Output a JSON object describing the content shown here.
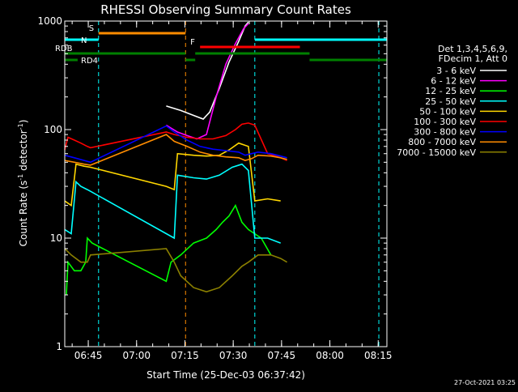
{
  "chart_data": {
    "type": "line",
    "title": "RHESSI Observing Summary Count Rates",
    "xlabel": "Start Time (25-Dec-03 06:37:42)",
    "ylabel": "Count Rate (s",
    "ylabel_sup1": "-1",
    "ylabel_mid": " detector",
    "ylabel_sup2": "-1",
    "ylabel_end": ")",
    "y_scale": "log",
    "ylim": [
      1,
      1000
    ],
    "xlim_minutes": [
      0,
      100
    ],
    "x_ticks": [
      {
        "label": "06:45",
        "min": 7.3
      },
      {
        "label": "07:00",
        "min": 22.3
      },
      {
        "label": "07:15",
        "min": 37.3
      },
      {
        "label": "07:30",
        "min": 52.3
      },
      {
        "label": "07:45",
        "min": 67.3
      },
      {
        "label": "08:00",
        "min": 82.3
      },
      {
        "label": "08:15",
        "min": 97.3
      }
    ],
    "y_ticks": [
      {
        "label": "1",
        "v": 1
      },
      {
        "label": "10",
        "v": 10
      },
      {
        "label": "100",
        "v": 100
      },
      {
        "label": "1000",
        "v": 1000
      }
    ],
    "legend_header": [
      "Det 1,3,4,5,6,9,",
      "FDecim 1, Att 0"
    ],
    "legend_placement": "right",
    "series": [
      {
        "name": "3 - 6 keV",
        "color": "#000000",
        "points": [
          [
            31.5,
            165
          ],
          [
            36,
            150
          ],
          [
            40,
            135
          ],
          [
            43,
            125
          ],
          [
            45,
            145
          ],
          [
            48,
            240
          ],
          [
            51,
            420
          ],
          [
            54,
            650
          ],
          [
            56,
            900
          ],
          [
            57,
            980
          ]
        ]
      },
      {
        "name": "6 - 12 keV",
        "color": "#ff00ff",
        "points": [
          [
            31.5,
            110
          ],
          [
            35,
            95
          ],
          [
            38,
            88
          ],
          [
            41,
            82
          ],
          [
            44,
            90
          ],
          [
            47,
            200
          ],
          [
            50,
            400
          ],
          [
            53,
            620
          ],
          [
            55.5,
            850
          ],
          [
            57,
            950
          ]
        ]
      },
      {
        "name": "12 - 25 keV",
        "color": "#00ff00",
        "points": [
          [
            0.5,
            3
          ],
          [
            1,
            6
          ],
          [
            3,
            5
          ],
          [
            5,
            5
          ],
          [
            6.5,
            6
          ],
          [
            7,
            10
          ],
          [
            8.5,
            9
          ],
          [
            31.5,
            4
          ],
          [
            33,
            6
          ],
          [
            36,
            7
          ],
          [
            40,
            9
          ],
          [
            44,
            10
          ],
          [
            47,
            12
          ],
          [
            49,
            14
          ],
          [
            51,
            16
          ],
          [
            53,
            20
          ],
          [
            55,
            14
          ],
          [
            57,
            12
          ],
          [
            61,
            10
          ],
          [
            64,
            7
          ]
        ]
      },
      {
        "name": "25 - 50 keV",
        "color": "#00ffff",
        "points": [
          [
            0,
            12
          ],
          [
            2,
            11
          ],
          [
            3.5,
            33
          ],
          [
            5,
            30
          ],
          [
            7,
            28
          ],
          [
            8,
            27
          ],
          [
            31.5,
            11
          ],
          [
            34,
            10
          ],
          [
            35,
            38
          ],
          [
            40,
            36
          ],
          [
            44,
            35
          ],
          [
            48,
            38
          ],
          [
            52,
            45
          ],
          [
            55,
            48
          ],
          [
            57,
            42
          ],
          [
            59,
            10
          ],
          [
            63,
            10
          ],
          [
            67,
            9
          ]
        ]
      },
      {
        "name": "50 - 100 keV",
        "color": "#ffd700",
        "points": [
          [
            0,
            22
          ],
          [
            2,
            20
          ],
          [
            3.5,
            48
          ],
          [
            6,
            46
          ],
          [
            8,
            45
          ],
          [
            31.5,
            30
          ],
          [
            34,
            28
          ],
          [
            35,
            60
          ],
          [
            40,
            58
          ],
          [
            44,
            57
          ],
          [
            48,
            58
          ],
          [
            51,
            65
          ],
          [
            54,
            75
          ],
          [
            57,
            70
          ],
          [
            59,
            22
          ],
          [
            63,
            23
          ],
          [
            67,
            22
          ]
        ]
      },
      {
        "name": "100 - 300 keV",
        "color": "#ff0000",
        "points": [
          [
            0,
            65
          ],
          [
            1,
            85
          ],
          [
            3,
            80
          ],
          [
            5,
            75
          ],
          [
            7,
            70
          ],
          [
            8,
            68
          ],
          [
            31.5,
            95
          ],
          [
            34,
            90
          ],
          [
            38,
            85
          ],
          [
            42,
            82
          ],
          [
            46,
            82
          ],
          [
            50,
            88
          ],
          [
            53,
            100
          ],
          [
            55,
            112
          ],
          [
            57,
            115
          ],
          [
            59,
            110
          ],
          [
            63,
            60
          ],
          [
            67,
            55
          ],
          [
            69,
            52
          ]
        ]
      },
      {
        "name": "300 - 800 keV",
        "color": "#0000ff",
        "points": [
          [
            0,
            58
          ],
          [
            3,
            55
          ],
          [
            6,
            52
          ],
          [
            8,
            50
          ],
          [
            31.5,
            108
          ],
          [
            34,
            95
          ],
          [
            38,
            80
          ],
          [
            42,
            70
          ],
          [
            46,
            66
          ],
          [
            50,
            64
          ],
          [
            54,
            62
          ],
          [
            56,
            58
          ],
          [
            58,
            60
          ],
          [
            60,
            62
          ],
          [
            64,
            60
          ],
          [
            67,
            57
          ],
          [
            69,
            55
          ]
        ]
      },
      {
        "name": "800 - 7000 keV",
        "color": "#ff8c00",
        "points": [
          [
            0,
            52
          ],
          [
            3,
            50
          ],
          [
            6,
            48
          ],
          [
            8,
            47
          ],
          [
            31.5,
            90
          ],
          [
            34,
            78
          ],
          [
            38,
            70
          ],
          [
            42,
            62
          ],
          [
            46,
            58
          ],
          [
            50,
            56
          ],
          [
            54,
            55
          ],
          [
            56,
            52
          ],
          [
            58,
            54
          ],
          [
            60,
            58
          ],
          [
            64,
            57
          ],
          [
            67,
            55
          ],
          [
            69,
            53
          ]
        ]
      },
      {
        "name": "7000 - 15000 keV",
        "color": "#8b8000",
        "points": [
          [
            0,
            8
          ],
          [
            2,
            7
          ],
          [
            5,
            6
          ],
          [
            7,
            6
          ],
          [
            8,
            7
          ],
          [
            31.5,
            8
          ],
          [
            34,
            6
          ],
          [
            36,
            4.5
          ],
          [
            40,
            3.5
          ],
          [
            44,
            3.2
          ],
          [
            48,
            3.5
          ],
          [
            52,
            4.5
          ],
          [
            55,
            5.5
          ],
          [
            57,
            6
          ],
          [
            60,
            7
          ],
          [
            64,
            7
          ],
          [
            67,
            6.5
          ],
          [
            69,
            6
          ]
        ]
      }
    ],
    "bars": [
      {
        "label": "S",
        "color": "#ff8c00",
        "start": 10.5,
        "end": 37.5,
        "level": 0
      },
      {
        "label": "N",
        "color": "#00ffff",
        "start": 0,
        "end": 10.5,
        "level": 1
      },
      {
        "label": "",
        "color": "#00ffff",
        "start": 59,
        "end": 100,
        "level": 1
      },
      {
        "label": "F",
        "color": "#ff0000",
        "start": 42,
        "end": 73,
        "level": 2
      },
      {
        "label": "RDB",
        "color": "#008000",
        "start": 0,
        "end": 37.5,
        "level": 3
      },
      {
        "label": "",
        "color": "#008000",
        "start": 40.5,
        "end": 76,
        "level": 3
      },
      {
        "label": "RD4",
        "color": "#008000",
        "start": 0,
        "end": 4,
        "level": 4
      },
      {
        "label": "",
        "color": "#008000",
        "start": 37.5,
        "end": 40.5,
        "level": 4
      },
      {
        "label": "",
        "color": "#008000",
        "start": 76,
        "end": 100,
        "level": 4
      }
    ],
    "vlines": [
      {
        "min": 10.5,
        "color": "#00ffff"
      },
      {
        "min": 37.5,
        "color": "#ff8c00"
      },
      {
        "min": 59,
        "color": "#00ffff"
      },
      {
        "min": 97.5,
        "color": "#00ffff"
      }
    ],
    "timestamp": "27-Oct-2021 03:25"
  }
}
